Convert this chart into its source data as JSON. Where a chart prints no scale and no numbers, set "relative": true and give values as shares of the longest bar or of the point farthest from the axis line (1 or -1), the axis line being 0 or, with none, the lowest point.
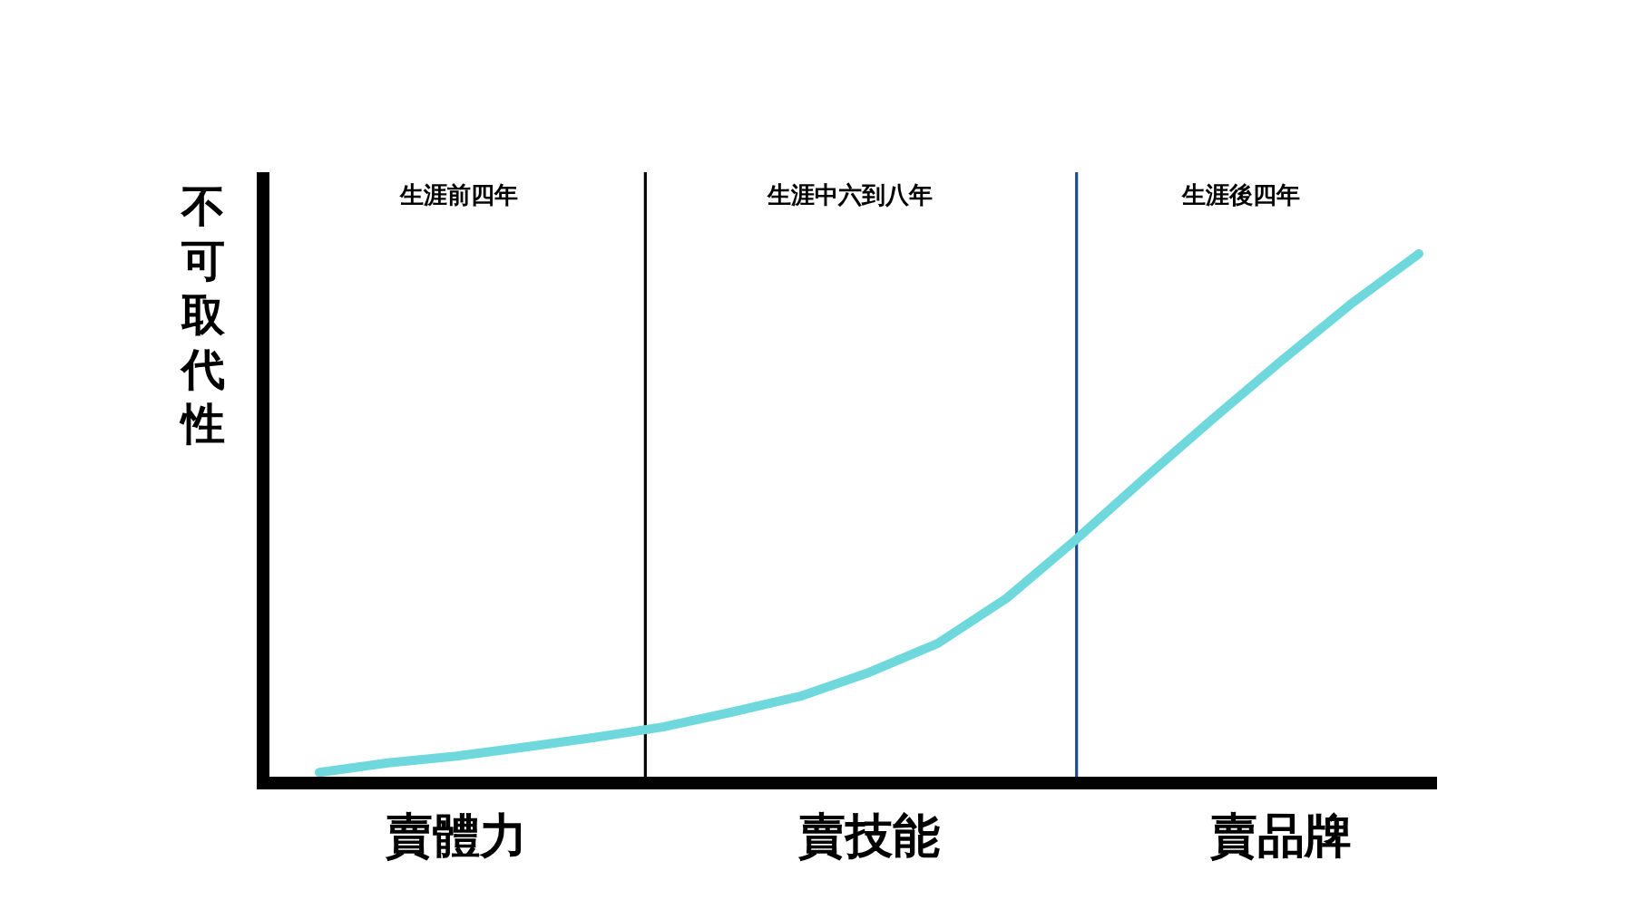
{
  "chart_data": {
    "type": "line",
    "relative": true,
    "ylabel": "不可取代性",
    "categories": [
      null,
      null,
      "賣體力",
      null,
      null,
      null,
      null,
      null,
      "賣技能",
      null,
      null,
      null,
      null,
      null,
      "賣品牌",
      null,
      null
    ],
    "series": [
      {
        "color": "#6fd8dd",
        "values": [
          0.02,
          0.038,
          0.051,
          0.068,
          0.086,
          0.106,
          0.134,
          0.164,
          0.209,
          0.264,
          0.349,
          0.459,
          0.575,
          0.688,
          0.798,
          0.904,
          1
        ]
      }
    ],
    "annotations": [
      "生涯前四年",
      "生涯中六到八年",
      "生涯後四年"
    ]
  }
}
